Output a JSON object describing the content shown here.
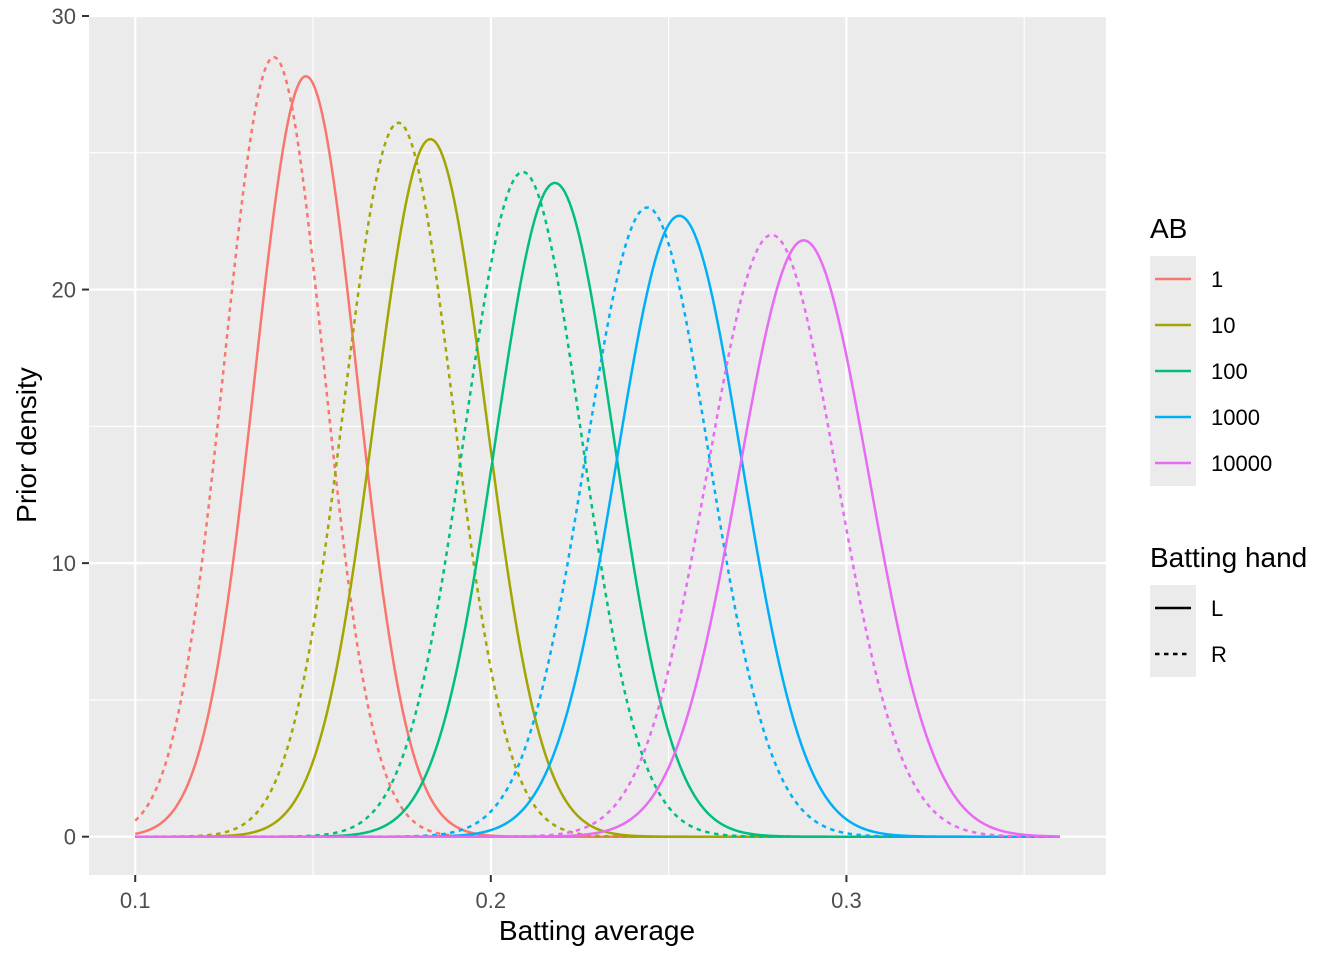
{
  "chart_data": {
    "type": "line",
    "title": "",
    "xlabel": "Batting average",
    "ylabel": "Prior density",
    "xlim": [
      0.087,
      0.373
    ],
    "ylim": [
      -1.4,
      30.0
    ],
    "x_ticks": [
      0.1,
      0.2,
      0.3
    ],
    "x_tick_labels": [
      "0.1",
      "0.2",
      "0.3"
    ],
    "x_minor": [
      0.15,
      0.25,
      0.35
    ],
    "y_ticks": [
      0,
      10,
      20,
      30
    ],
    "y_tick_labels": [
      "0",
      "10",
      "20",
      "30"
    ],
    "y_minor": [
      5,
      15,
      25
    ],
    "x_range": [
      0.1,
      0.36
    ],
    "grid": true,
    "legend_position": "right",
    "legends": {
      "color": {
        "title": "AB",
        "entries": [
          {
            "label": "1",
            "color": "#F8766D"
          },
          {
            "label": "10",
            "color": "#A3A500"
          },
          {
            "label": "100",
            "color": "#00BF7D"
          },
          {
            "label": "1000",
            "color": "#00B0F6"
          },
          {
            "label": "10000",
            "color": "#E76BF3"
          }
        ]
      },
      "linetype": {
        "title": "Batting hand",
        "entries": [
          {
            "label": "L",
            "dash": "solid"
          },
          {
            "label": "R",
            "dash": "dashed"
          }
        ]
      }
    },
    "series": [
      {
        "ab": "1",
        "hand": "L",
        "color": "#F8766D",
        "dash": "solid",
        "peak_x": 0.148,
        "peak_y": 27.8,
        "sd": 0.01435
      },
      {
        "ab": "1",
        "hand": "R",
        "color": "#F8766D",
        "dash": "dashed",
        "peak_x": 0.139,
        "peak_y": 28.5,
        "sd": 0.014
      },
      {
        "ab": "10",
        "hand": "L",
        "color": "#A3A500",
        "dash": "solid",
        "peak_x": 0.183,
        "peak_y": 25.5,
        "sd": 0.01564
      },
      {
        "ab": "10",
        "hand": "R",
        "color": "#A3A500",
        "dash": "dashed",
        "peak_x": 0.174,
        "peak_y": 26.1,
        "sd": 0.01528
      },
      {
        "ab": "100",
        "hand": "L",
        "color": "#00BF7D",
        "dash": "solid",
        "peak_x": 0.218,
        "peak_y": 23.9,
        "sd": 0.01669
      },
      {
        "ab": "100",
        "hand": "R",
        "color": "#00BF7D",
        "dash": "dashed",
        "peak_x": 0.209,
        "peak_y": 24.3,
        "sd": 0.01642
      },
      {
        "ab": "1000",
        "hand": "L",
        "color": "#00B0F6",
        "dash": "solid",
        "peak_x": 0.253,
        "peak_y": 22.7,
        "sd": 0.01757
      },
      {
        "ab": "1000",
        "hand": "R",
        "color": "#00B0F6",
        "dash": "dashed",
        "peak_x": 0.244,
        "peak_y": 23.0,
        "sd": 0.01735
      },
      {
        "ab": "10000",
        "hand": "L",
        "color": "#E76BF3",
        "dash": "solid",
        "peak_x": 0.288,
        "peak_y": 21.8,
        "sd": 0.0183
      },
      {
        "ab": "10000",
        "hand": "R",
        "color": "#E76BF3",
        "dash": "dashed",
        "peak_x": 0.279,
        "peak_y": 22.0,
        "sd": 0.01813
      }
    ]
  }
}
